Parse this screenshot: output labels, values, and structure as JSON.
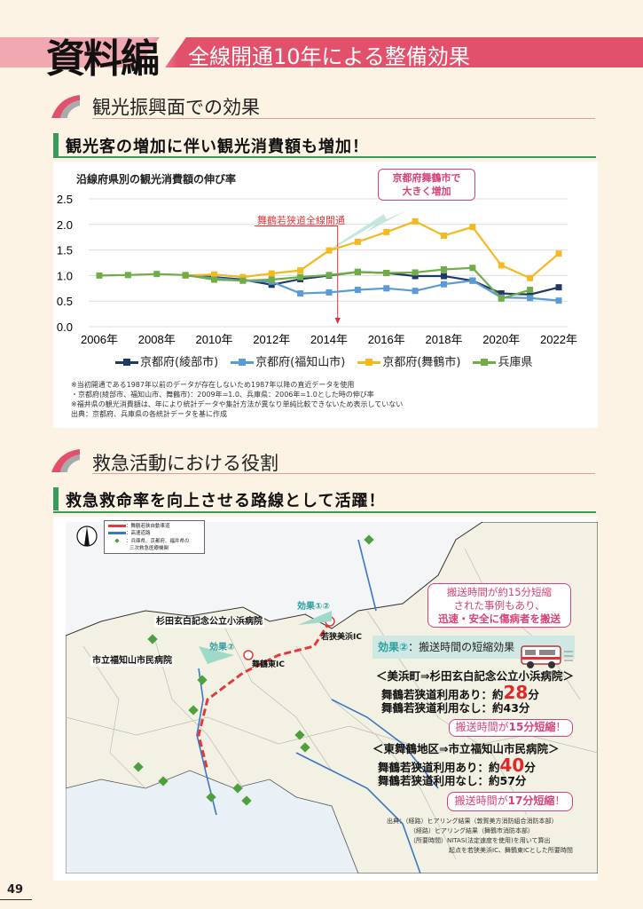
{
  "header": {
    "main_title": "資料編",
    "banner_title": "全線開通10年による整備効果"
  },
  "section1": {
    "title": "観光振興面での効果",
    "subtitle": "観光客の増加に伴い観光消費額も増加！"
  },
  "chart_data": {
    "type": "line",
    "title": "沿線府県別の観光消費額の伸び率",
    "xlabel": "",
    "ylabel": "",
    "ylim": [
      0,
      2.5
    ],
    "yticks": [
      "0.0",
      "0.5",
      "1.0",
      "1.5",
      "2.0",
      "2.5"
    ],
    "xticks": [
      "2006年",
      "2008年",
      "2010年",
      "2012年",
      "2014年",
      "2016年",
      "2018年",
      "2020年",
      "2022年"
    ],
    "x": [
      2006,
      2007,
      2008,
      2009,
      2010,
      2011,
      2012,
      2013,
      2014,
      2015,
      2016,
      2017,
      2018,
      2019,
      2020,
      2021,
      2022
    ],
    "series": [
      {
        "name": "京都府(綾部市)",
        "color": "#1f3864",
        "values": [
          null,
          null,
          null,
          1.0,
          0.97,
          0.92,
          0.82,
          0.93,
          1.0,
          1.07,
          1.05,
          0.99,
          0.99,
          0.9,
          0.65,
          0.63,
          0.77
        ]
      },
      {
        "name": "京都府(福知山市)",
        "color": "#5b9bd5",
        "values": [
          null,
          null,
          null,
          1.0,
          0.95,
          0.9,
          0.88,
          0.65,
          0.67,
          0.72,
          0.75,
          0.7,
          0.83,
          0.9,
          0.57,
          0.56,
          0.51
        ]
      },
      {
        "name": "京都府(舞鶴市)",
        "color": "#f5b920",
        "values": [
          null,
          null,
          null,
          1.0,
          1.02,
          0.97,
          1.04,
          1.1,
          1.49,
          1.66,
          1.85,
          2.06,
          1.78,
          1.95,
          1.2,
          0.95,
          1.43
        ]
      },
      {
        "name": "兵庫県",
        "color": "#70ad47",
        "values": [
          1.0,
          1.01,
          1.03,
          1.01,
          0.92,
          0.9,
          0.92,
          0.97,
          1.01,
          1.07,
          1.05,
          1.06,
          1.12,
          1.15,
          0.55,
          0.72,
          null
        ]
      }
    ],
    "grid": true,
    "legend": "bottom",
    "annotations": {
      "opening_label": "舞鶴若狭道全線開通",
      "opening_year": 2014.3,
      "callout": [
        "京都府舞鶴市で",
        "大きく増加"
      ]
    }
  },
  "notes": [
    "※当初開通である1987年以前のデータが存在しないため1987年以降の直近データを使用",
    "・京都府(綾部市、福知山市、舞鶴市)：2009年=1.0、兵庫県：2006年=1.0とした時の伸び率",
    "※福井県の観光消費額は、年により統計データや集計方法が異なり単純比較できないため表示していない",
    "出典：京都府、兵庫県の各統計データを基に作成"
  ],
  "section2": {
    "title": "救急活動における役割",
    "subtitle": "救急救命率を向上させる路線として活躍！"
  },
  "map": {
    "legend": [
      "：舞鶴若狭自動車道",
      "：高速道路",
      "：兵庫県、京都府、福井県の",
      "三次救急医療機関"
    ],
    "labels": {
      "obama_hospital": "杉田玄白記念公立小浜病院",
      "fukuchiyama_hospital": "市立福知山市民病院",
      "maizuru_east_ic": "舞鶴東IC",
      "wakasa_mihama_ic": "若狭美浜IC",
      "effect12": "効果①②",
      "effect2": "効果②"
    }
  },
  "effects": {
    "callout": [
      "搬送時間が約15分短縮",
      "された事例もあり、",
      "迅速・安全に傷病者を搬送"
    ],
    "effect2_label": "効果②",
    "effect2_text": "：搬送時間の短縮効果",
    "routes": [
      {
        "title": "＜美浜町⇒杉田玄白記念公立小浜病院＞",
        "with_prefix": "舞鶴若狭道利用あり：約",
        "with_value": "28",
        "unit": "分",
        "without": "舞鶴若狭道利用なし：約43分",
        "saving_prefix": "搬送時間が",
        "saving": "15分短縮",
        "saving_suffix": "！"
      },
      {
        "title": "＜東舞鶴地区⇒市立福知山市民病院＞",
        "with_prefix": "舞鶴若狭道利用あり：約",
        "with_value": "40",
        "unit": "分",
        "without": "舞鶴若狭道利用なし：約57分",
        "saving_prefix": "搬送時間が",
        "saving": "17分短縮",
        "saving_suffix": "！"
      }
    ],
    "sources": [
      "出典：（経路）ヒアリング結果（敦賀美方消防組合消防本部）",
      "（経路）ヒアリング結果（舞鶴市消防本部）",
      "（所要時間）NITAS(法定速度を使用)を用いて算出",
      "起点を若狭美浜IC、舞鶴東ICとした所要時間"
    ]
  },
  "page_number": "49"
}
